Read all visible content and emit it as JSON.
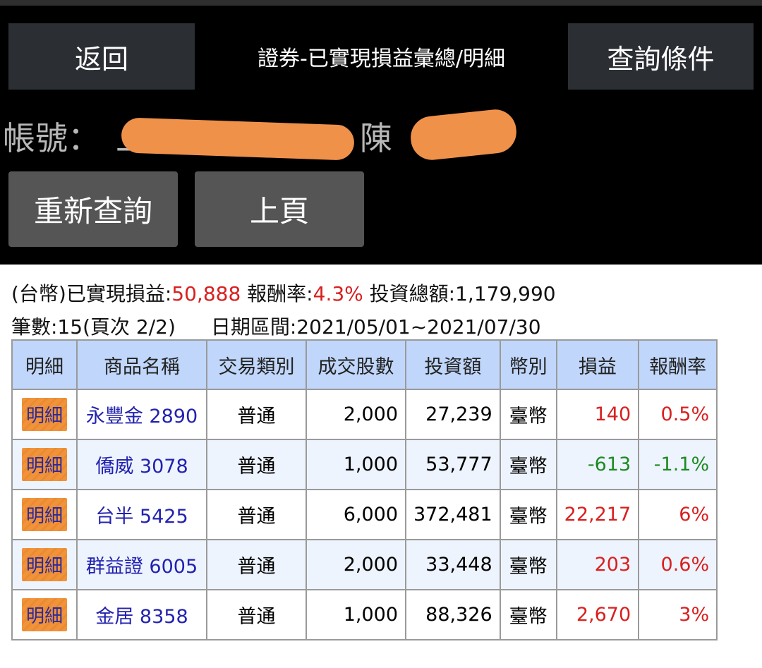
{
  "header": {
    "back_label": "返回",
    "title": "證券-已實現損益彙總/明細",
    "query_label": "查詢條件"
  },
  "account": {
    "label": "帳號：",
    "visible_fragment_start": "上",
    "visible_fragment_mid": "8 陳"
  },
  "actions": {
    "requery_label": "重新查詢",
    "prev_label": "上頁"
  },
  "summary": {
    "currency_prefix": "(台幣)已實現損益:",
    "realized_pnl": "50,888",
    "return_label": " 報酬率:",
    "return_rate": "4.3%",
    "invest_label": " 投資總額:",
    "invest_total": "1,179,990",
    "count_text": "筆數:15(頁次 2/2)",
    "date_range_text": "日期區間:2021/05/01~2021/07/30"
  },
  "colors": {
    "profit": "#d8201f",
    "loss": "#1d8a23",
    "header_bg": "#c0d6fa",
    "detail_button": "#f0933a",
    "link": "#2222b0"
  },
  "table": {
    "headers": [
      "明細",
      "商品名稱",
      "交易類別",
      "成交股數",
      "投資額",
      "幣別",
      "損益",
      "報酬率"
    ],
    "rows": [
      {
        "detail": "明細",
        "name": "永豐金 2890",
        "type": "普通",
        "shares": "2,000",
        "amount": "27,239",
        "currency": "臺幣",
        "pnl": "140",
        "rate": "0.5%",
        "sign": "profit"
      },
      {
        "detail": "明細",
        "name": "僑威 3078",
        "type": "普通",
        "shares": "1,000",
        "amount": "53,777",
        "currency": "臺幣",
        "pnl": "-613",
        "rate": "-1.1%",
        "sign": "loss"
      },
      {
        "detail": "明細",
        "name": "台半 5425",
        "type": "普通",
        "shares": "6,000",
        "amount": "372,481",
        "currency": "臺幣",
        "pnl": "22,217",
        "rate": "6%",
        "sign": "profit"
      },
      {
        "detail": "明細",
        "name": "群益證 6005",
        "type": "普通",
        "shares": "2,000",
        "amount": "33,448",
        "currency": "臺幣",
        "pnl": "203",
        "rate": "0.6%",
        "sign": "profit"
      },
      {
        "detail": "明細",
        "name": "金居 8358",
        "type": "普通",
        "shares": "1,000",
        "amount": "88,326",
        "currency": "臺幣",
        "pnl": "2,670",
        "rate": "3%",
        "sign": "profit"
      }
    ]
  }
}
